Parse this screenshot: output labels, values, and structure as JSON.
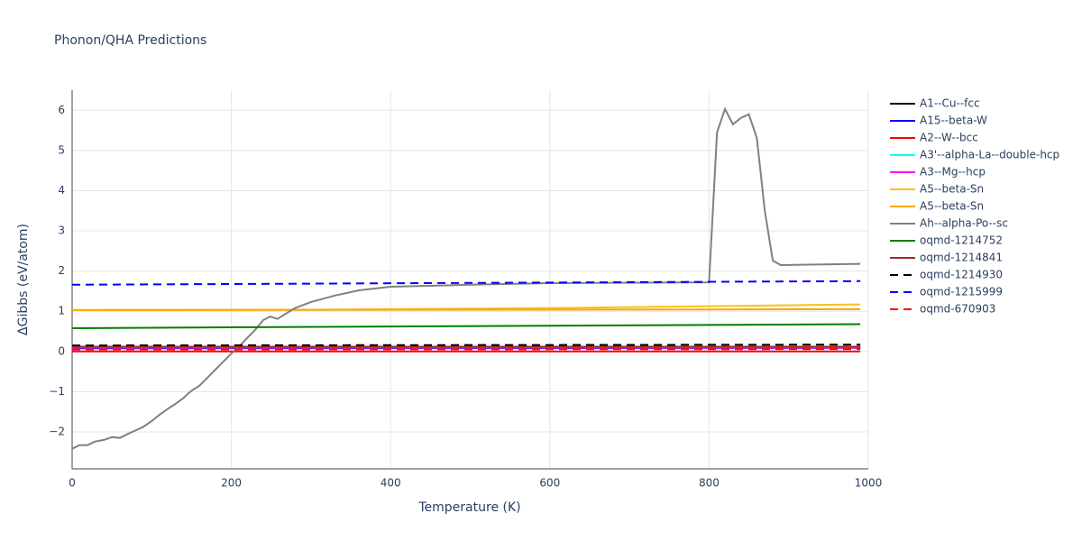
{
  "chart_data": {
    "type": "line",
    "title": "Phonon/QHA Predictions",
    "x_label": "Temperature (K)",
    "y_label": "ΔGibbs (eV/atom)",
    "xlim": [
      0,
      1000
    ],
    "xticks": [
      0,
      200,
      400,
      600,
      800,
      1000
    ],
    "ylim": [
      -2.92,
      6.5
    ],
    "yticks": [
      {
        "value": -2,
        "label": "−2"
      },
      {
        "value": -1,
        "label": "−1"
      },
      0,
      1,
      2,
      3,
      4,
      5,
      6
    ],
    "grid": true,
    "legend": "right",
    "series": [
      {
        "name": "A1--Cu--fcc",
        "color": "#000000",
        "dash": false,
        "x": [
          0,
          990
        ],
        "values": [
          0.1,
          0.11
        ]
      },
      {
        "name": "A15--beta-W",
        "color": "#0000ff",
        "dash": false,
        "x": [
          0,
          990
        ],
        "values": [
          0.08,
          0.09
        ]
      },
      {
        "name": "A2--W--bcc",
        "color": "#ff0000",
        "dash": false,
        "x": [
          0,
          990
        ],
        "values": [
          0.0,
          0.0
        ]
      },
      {
        "name": "A3'--alpha-La--double-hcp",
        "color": "#00ffff",
        "dash": false,
        "x": [
          0,
          990
        ],
        "values": [
          0.1,
          0.1
        ]
      },
      {
        "name": "A3--Mg--hcp",
        "color": "#ff00ff",
        "dash": false,
        "x": [
          0,
          990
        ],
        "values": [
          0.1,
          0.1
        ]
      },
      {
        "name": "A5--beta-Sn",
        "color": "#f5c21b",
        "dash": false,
        "x": [
          0,
          300,
          600,
          990
        ],
        "values": [
          1.03,
          1.04,
          1.08,
          1.17
        ]
      },
      {
        "name": "A5--beta-Sn",
        "color": "#ffa500",
        "dash": false,
        "x": [
          0,
          990
        ],
        "values": [
          1.03,
          1.05
        ]
      },
      {
        "name": "Ah--alpha-Po--sc",
        "color": "#808080",
        "dash": false,
        "x": [
          0,
          9,
          19,
          29,
          40,
          50,
          60,
          69,
          79,
          89,
          100,
          110,
          120,
          130,
          139,
          149,
          160,
          170,
          180,
          190,
          199,
          210,
          220,
          230,
          240,
          249,
          258,
          270,
          280,
          300,
          330,
          360,
          400,
          500,
          600,
          800,
          810,
          820,
          830,
          840,
          850,
          860,
          870,
          880,
          890,
          990
        ],
        "values": [
          -2.42,
          -2.33,
          -2.33,
          -2.24,
          -2.2,
          -2.13,
          -2.15,
          -2.06,
          -1.97,
          -1.88,
          -1.73,
          -1.57,
          -1.43,
          -1.3,
          -1.17,
          -0.99,
          -0.85,
          -0.65,
          -0.45,
          -0.25,
          -0.07,
          0.13,
          0.34,
          0.54,
          0.78,
          0.87,
          0.81,
          0.96,
          1.08,
          1.23,
          1.39,
          1.52,
          1.61,
          1.66,
          1.7,
          1.72,
          5.45,
          6.03,
          5.65,
          5.81,
          5.9,
          5.31,
          3.5,
          2.26,
          2.15,
          2.18
        ]
      },
      {
        "name": "oqmd-1214752",
        "color": "#008000",
        "dash": false,
        "x": [
          0,
          990
        ],
        "values": [
          0.58,
          0.68
        ]
      },
      {
        "name": "oqmd-1214841",
        "color": "#a52a2a",
        "dash": false,
        "x": [
          0,
          990
        ],
        "values": [
          0.12,
          0.12
        ]
      },
      {
        "name": "oqmd-1214930",
        "color": "#000000",
        "dash": true,
        "x": [
          0,
          990
        ],
        "values": [
          0.15,
          0.17
        ]
      },
      {
        "name": "oqmd-1215999",
        "color": "#0000ff",
        "dash": true,
        "x": [
          0,
          990
        ],
        "values": [
          1.66,
          1.75
        ]
      },
      {
        "name": "oqmd-670903",
        "color": "#ff0000",
        "dash": true,
        "x": [
          0,
          990
        ],
        "values": [
          0.05,
          0.06
        ]
      }
    ]
  }
}
